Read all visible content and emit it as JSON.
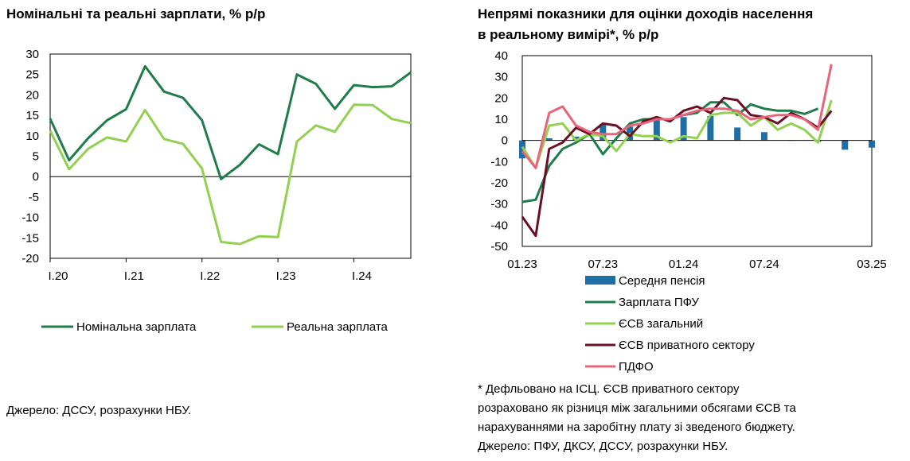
{
  "chart_data": [
    {
      "type": "line",
      "title": "Номінальні та реальні зарплати, % р/р",
      "ylim": [
        -20,
        30
      ],
      "yticks": [
        -20,
        -15,
        -10,
        -5,
        0,
        5,
        10,
        15,
        20,
        25,
        30
      ],
      "xlim": [
        2020.0,
        2024.75
      ],
      "x": [
        2020.0,
        2020.25,
        2020.5,
        2020.75,
        2021.0,
        2021.25,
        2021.5,
        2021.75,
        2022.0,
        2022.25,
        2022.5,
        2022.75,
        2023.0,
        2023.25,
        2023.5,
        2023.75,
        2024.0,
        2024.25,
        2024.5,
        2024.75
      ],
      "categories": [
        "I.20",
        "I.21",
        "I.22",
        "I.23",
        "I.24"
      ],
      "series": [
        {
          "name": "Номінальна зарплата",
          "color": "#1e7d4a",
          "values": [
            14.2,
            4.0,
            9.4,
            13.8,
            16.5,
            27.0,
            20.8,
            19.3,
            13.8,
            -0.6,
            2.9,
            7.9,
            5.5,
            25.0,
            22.7,
            16.6,
            22.4,
            21.9,
            22.1,
            25.5
          ]
        },
        {
          "name": "Реальна зарплата",
          "color": "#92d050",
          "values": [
            11.2,
            1.8,
            6.8,
            9.6,
            8.6,
            16.3,
            9.2,
            8.0,
            2.0,
            -16.0,
            -16.5,
            -14.6,
            -14.8,
            8.6,
            12.5,
            11.0,
            17.6,
            17.5,
            14.1,
            13.1
          ]
        }
      ],
      "legend_position": "bottom",
      "source": "Джерело: ДССУ, розрахунки НБУ."
    },
    {
      "type": "line",
      "title_lines": [
        "Непрямі показники для оцінки доходів населення",
        "в реальному вимірі*, % р/р"
      ],
      "ylim": [
        -50,
        40
      ],
      "yticks": [
        -50,
        -40,
        -30,
        -20,
        -10,
        0,
        10,
        20,
        30,
        40
      ],
      "xlim": [
        0,
        26
      ],
      "categories": [
        "01.23",
        "07.23",
        "01.24",
        "07.24",
        "03.25"
      ],
      "category_positions": [
        0,
        6,
        12,
        18,
        26
      ],
      "bars": {
        "name": "Середня пенсія",
        "color": "#1f6fa6",
        "x": [
          0,
          2,
          4,
          6,
          8,
          10,
          12,
          14,
          16,
          18,
          20,
          22,
          24,
          26
        ],
        "values": [
          -8.5,
          1.0,
          1.8,
          7.4,
          6.5,
          11.2,
          11.0,
          11.5,
          6.1,
          3.9,
          0,
          -0.6,
          -4.4,
          -3.4
        ]
      },
      "series": [
        {
          "name": "Зарплата ПФУ",
          "color": "#1e7d4a",
          "x": [
            0,
            1,
            2,
            3,
            4,
            5,
            6,
            7,
            8,
            9,
            10,
            11,
            12,
            13,
            14,
            15,
            16,
            17,
            18,
            19,
            20,
            21,
            22,
            23
          ],
          "values": [
            -29,
            -28,
            -12,
            -4,
            -1,
            3,
            -6.5,
            1,
            8,
            10,
            10,
            10,
            12,
            13,
            18,
            18,
            12,
            17,
            15,
            14,
            14,
            12.5,
            15,
            null
          ]
        },
        {
          "name": "ЄСВ загальний",
          "color": "#92d050",
          "x": [
            0,
            1,
            2,
            3,
            4,
            5,
            6,
            7,
            8,
            9,
            10,
            11,
            12,
            13,
            14,
            15,
            16,
            17,
            18,
            19,
            20,
            21,
            22,
            23,
            24
          ],
          "values": [
            -3,
            -13,
            7,
            8,
            0,
            3,
            2,
            -5,
            3,
            2,
            2,
            -1,
            2,
            1,
            12,
            13,
            13,
            7,
            11,
            5,
            8,
            5,
            -1,
            19,
            null
          ]
        },
        {
          "name": "ЄСВ приватного сектору",
          "color": "#6b0f24",
          "x": [
            0,
            1,
            2,
            3,
            4,
            5,
            6,
            7,
            8,
            9,
            10,
            11,
            12,
            13,
            14,
            15,
            16,
            17,
            18,
            19,
            20,
            21,
            22,
            23,
            24
          ],
          "values": [
            -36,
            -45,
            -4,
            -1,
            6,
            3,
            8,
            7,
            2,
            9,
            11,
            9,
            14,
            16,
            13,
            20,
            19,
            12,
            11,
            8,
            13,
            10,
            6,
            14,
            null
          ]
        },
        {
          "name": "ПДФО",
          "color": "#e8647a",
          "x": [
            0,
            1,
            2,
            3,
            4,
            5,
            6,
            7,
            8,
            9,
            10,
            11,
            12,
            13,
            14,
            15,
            16,
            17,
            18,
            19,
            20,
            21,
            22,
            23
          ],
          "values": [
            -5,
            -13,
            13,
            16,
            7,
            4,
            3,
            3,
            7,
            8,
            10,
            10,
            12,
            14,
            15,
            15,
            14,
            10,
            11,
            12,
            12,
            10,
            5,
            36
          ]
        }
      ],
      "legend_position": "bottom",
      "notes": [
        "* Дефльовано на ІСЦ. ЄСВ приватного сектору",
        "розраховано як різниця між загальними обсягами ЄСВ та",
        "нарахуваннями на заробітну плату зі зведеного бюджету.",
        "Джерело: ПФУ, ДКСУ, ДССУ, розрахунки НБУ."
      ]
    }
  ]
}
